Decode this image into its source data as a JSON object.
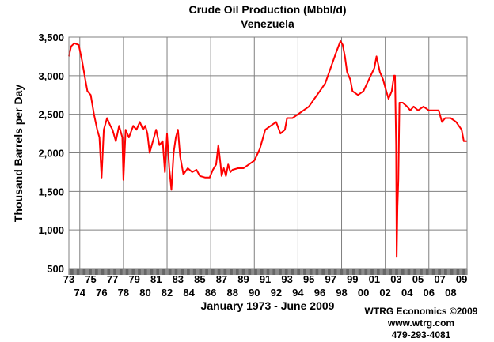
{
  "chart_data": {
    "type": "line",
    "title": "Crude Oil Production (Mbbl/d)",
    "subtitle": "Venezuela",
    "xlabel": "January 1973 - June 2009",
    "ylabel": "Thousand Barrels per Day",
    "ylim": [
      500,
      3500
    ],
    "y_ticks": [
      "3,500",
      "3,000",
      "2,500",
      "2,000",
      "1,500",
      "1,000",
      "500"
    ],
    "x_ticks_top": [
      "73",
      "75",
      "77",
      "79",
      "81",
      "83",
      "85",
      "87",
      "89",
      "91",
      "93",
      "95",
      "97",
      "99",
      "01",
      "03",
      "05",
      "07",
      "09"
    ],
    "x_ticks_bottom": [
      "74",
      "76",
      "78",
      "80",
      "82",
      "84",
      "86",
      "88",
      "90",
      "92",
      "94",
      "96",
      "98",
      "00",
      "02",
      "04",
      "06",
      "08"
    ],
    "grid": true,
    "series": [
      {
        "color": "#ff0000",
        "points": [
          [
            1973.0,
            3250
          ],
          [
            1973.2,
            3380
          ],
          [
            1973.5,
            3420
          ],
          [
            1973.9,
            3400
          ],
          [
            1974.2,
            3200
          ],
          [
            1974.5,
            2950
          ],
          [
            1974.7,
            2800
          ],
          [
            1975.0,
            2750
          ],
          [
            1975.3,
            2500
          ],
          [
            1975.6,
            2300
          ],
          [
            1975.8,
            2200
          ],
          [
            1976.0,
            1680
          ],
          [
            1976.2,
            2300
          ],
          [
            1976.5,
            2450
          ],
          [
            1976.8,
            2350
          ],
          [
            1977.0,
            2300
          ],
          [
            1977.3,
            2150
          ],
          [
            1977.6,
            2350
          ],
          [
            1977.9,
            2200
          ],
          [
            1978.0,
            1650
          ],
          [
            1978.2,
            2300
          ],
          [
            1978.5,
            2200
          ],
          [
            1978.9,
            2350
          ],
          [
            1979.2,
            2300
          ],
          [
            1979.5,
            2400
          ],
          [
            1979.8,
            2300
          ],
          [
            1980.0,
            2350
          ],
          [
            1980.2,
            2250
          ],
          [
            1980.4,
            2000
          ],
          [
            1980.7,
            2150
          ],
          [
            1981.0,
            2300
          ],
          [
            1981.3,
            2100
          ],
          [
            1981.6,
            2150
          ],
          [
            1981.8,
            1750
          ],
          [
            1982.0,
            2250
          ],
          [
            1982.2,
            1800
          ],
          [
            1982.4,
            1520
          ],
          [
            1982.6,
            2000
          ],
          [
            1982.8,
            2200
          ],
          [
            1983.0,
            2300
          ],
          [
            1983.2,
            1950
          ],
          [
            1983.5,
            1720
          ],
          [
            1983.9,
            1800
          ],
          [
            1984.3,
            1750
          ],
          [
            1984.7,
            1780
          ],
          [
            1985.0,
            1700
          ],
          [
            1985.5,
            1680
          ],
          [
            1985.9,
            1680
          ],
          [
            1986.2,
            1780
          ],
          [
            1986.5,
            1850
          ],
          [
            1986.7,
            2100
          ],
          [
            1986.9,
            1850
          ],
          [
            1987.0,
            1700
          ],
          [
            1987.2,
            1800
          ],
          [
            1987.4,
            1700
          ],
          [
            1987.6,
            1850
          ],
          [
            1987.8,
            1750
          ],
          [
            1988.0,
            1780
          ],
          [
            1988.5,
            1800
          ],
          [
            1989.0,
            1800
          ],
          [
            1989.5,
            1850
          ],
          [
            1990.0,
            1900
          ],
          [
            1990.5,
            2050
          ],
          [
            1991.0,
            2300
          ],
          [
            1991.5,
            2350
          ],
          [
            1992.0,
            2400
          ],
          [
            1992.4,
            2250
          ],
          [
            1992.8,
            2300
          ],
          [
            1993.0,
            2450
          ],
          [
            1993.5,
            2450
          ],
          [
            1994.0,
            2500
          ],
          [
            1994.5,
            2550
          ],
          [
            1995.0,
            2600
          ],
          [
            1995.5,
            2700
          ],
          [
            1996.0,
            2800
          ],
          [
            1996.5,
            2900
          ],
          [
            1997.0,
            3100
          ],
          [
            1997.5,
            3300
          ],
          [
            1997.9,
            3450
          ],
          [
            1998.1,
            3400
          ],
          [
            1998.3,
            3250
          ],
          [
            1998.5,
            3050
          ],
          [
            1998.8,
            2950
          ],
          [
            1999.0,
            2800
          ],
          [
            1999.5,
            2750
          ],
          [
            2000.0,
            2800
          ],
          [
            2000.5,
            2950
          ],
          [
            2001.0,
            3100
          ],
          [
            2001.2,
            3250
          ],
          [
            2001.5,
            3050
          ],
          [
            2001.8,
            2950
          ],
          [
            2002.0,
            2850
          ],
          [
            2002.3,
            2700
          ],
          [
            2002.6,
            2800
          ],
          [
            2002.8,
            3000
          ],
          [
            2002.9,
            3000
          ],
          [
            2003.0,
            2100
          ],
          [
            2003.05,
            650
          ],
          [
            2003.12,
            1300
          ],
          [
            2003.2,
            1650
          ],
          [
            2003.3,
            2650
          ],
          [
            2003.6,
            2650
          ],
          [
            2004.0,
            2600
          ],
          [
            2004.3,
            2550
          ],
          [
            2004.6,
            2600
          ],
          [
            2005.0,
            2550
          ],
          [
            2005.5,
            2600
          ],
          [
            2006.0,
            2550
          ],
          [
            2006.5,
            2550
          ],
          [
            2006.9,
            2550
          ],
          [
            2007.2,
            2400
          ],
          [
            2007.5,
            2450
          ],
          [
            2008.0,
            2450
          ],
          [
            2008.5,
            2400
          ],
          [
            2009.0,
            2300
          ],
          [
            2009.2,
            2150
          ],
          [
            2009.5,
            2150
          ]
        ]
      }
    ]
  },
  "footer": {
    "credit_line1": "WTRG Economics  ©2009",
    "credit_line2": "www.wtrg.com",
    "credit_line3": "479-293-4081"
  }
}
